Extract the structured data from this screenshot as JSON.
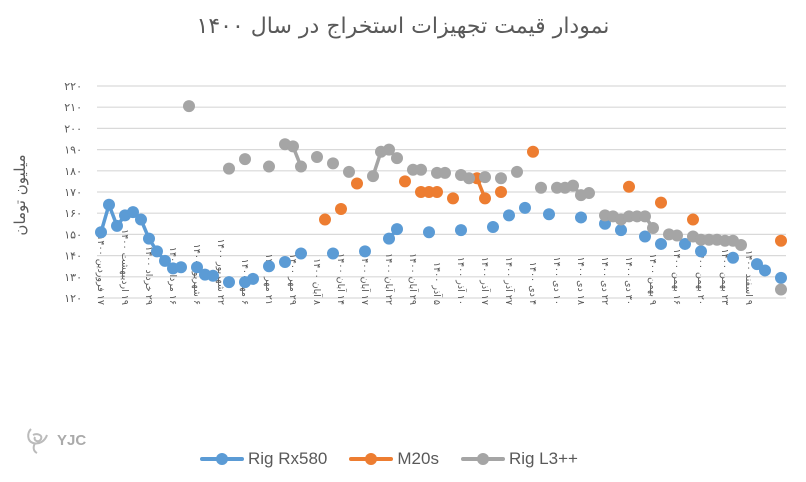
{
  "chart_data": {
    "type": "line",
    "title": "نمودار قیمت تجهیزات استخراج در سال ۱۴۰۰",
    "xlabel": "",
    "ylabel": "میلیون تومان",
    "ylim": [
      120,
      220
    ],
    "yticks": [
      220,
      210,
      200,
      190,
      180,
      170,
      160,
      150,
      140,
      130,
      120
    ],
    "ytick_labels": [
      "۲۲۰",
      "۲۱۰",
      "۲۰۰",
      "۱۹۰",
      "۱۸۰",
      "۱۷۰",
      "۱۶۰",
      "۱۵۰",
      "۱۴۰",
      "۱۳۰",
      "۱۲۰"
    ],
    "grid": true,
    "legend_position": "bottom",
    "n_categories": 86,
    "label_every": 3,
    "categories_labeled": [
      "۱۷ فروردین ۱۴۰۰",
      "۱۹ اردیبهشت ۱۴۰۰",
      "۲۹ خرداد ۱۴۰۰",
      "۱۶ مرداد ۱۴۰۰",
      "۶ شهریور ۱۴۰۰",
      "۲۲ شهریور ۱۴۰۰",
      "۶ مهر ۱۴۰۰",
      "۲۱ مهر ۱۴۰۰",
      "۲۹ مهر ۱۴۰۰",
      "۸ آبان ۱۴۰۰",
      "۱۴ آبان ۱۴۰۰",
      "۱۷ آبان ۱۴۰۰",
      "۲۲ آبان ۱۴۰۰",
      "۲۹ آبان ۱۴۰۰",
      "۵ آذر ۱۴۰۰",
      "۱۰ آذر ۱۴۰۰",
      "۱۷ آذر ۱۴۰۰",
      "۲۷ آذر ۱۴۰۰",
      "۴ دی ۱۴۰۰",
      "۱۰ دی ۱۴۰۰",
      "۱۸ دی ۱۴۰۰",
      "۲۲ دی ۱۴۰۰",
      "۳۰ دی ۱۴۰۰",
      "۹ بهمن ۱۴۰۰",
      "۱۶ بهمن ۱۴۰۰",
      "۲۰ بهمن ۱۴۰۰",
      "۲۳ بهمن ۱۴۰۰",
      "۹ اسفند ۱۴۰۰"
    ],
    "series": [
      {
        "name": "Rig Rx580",
        "color": "#5B9BD5",
        "points": [
          [
            0,
            151
          ],
          [
            1,
            164
          ],
          [
            2,
            154
          ],
          [
            3,
            159
          ],
          [
            4,
            160.5
          ],
          [
            5,
            157
          ],
          [
            6,
            148
          ],
          [
            7,
            142
          ],
          [
            8,
            137.5
          ],
          [
            9,
            134
          ],
          [
            10,
            134.5
          ],
          [
            12,
            134.5
          ],
          [
            13,
            131
          ],
          [
            14,
            130.5
          ],
          [
            16,
            127.5
          ],
          [
            18,
            127.5
          ],
          [
            19,
            129
          ],
          [
            21,
            135
          ],
          [
            23,
            137
          ],
          [
            25,
            141
          ],
          [
            29,
            141
          ],
          [
            33,
            142
          ],
          [
            36,
            148
          ],
          [
            37,
            152.5
          ],
          [
            41,
            151
          ],
          [
            45,
            152
          ],
          [
            49,
            153.5
          ],
          [
            51,
            159
          ],
          [
            53,
            162.5
          ],
          [
            56,
            159.5
          ],
          [
            60,
            158
          ],
          [
            63,
            155
          ],
          [
            65,
            152
          ],
          [
            68,
            149
          ],
          [
            70,
            145.5
          ],
          [
            73,
            145.5
          ],
          [
            75,
            142
          ],
          [
            79,
            139
          ],
          [
            82,
            136
          ],
          [
            83,
            133
          ],
          [
            85,
            129.5
          ]
        ]
      },
      {
        "name": "M20s",
        "color": "#ED7D31",
        "points": [
          [
            28,
            157
          ],
          [
            30,
            162
          ],
          [
            32,
            174
          ],
          [
            38,
            175
          ],
          [
            40,
            170
          ],
          [
            41,
            170
          ],
          [
            42,
            170
          ],
          [
            44,
            167
          ],
          [
            47,
            176.5
          ],
          [
            48,
            167
          ],
          [
            50,
            170
          ],
          [
            54,
            189
          ],
          [
            66,
            172.5
          ],
          [
            70,
            165
          ],
          [
            74,
            157
          ],
          [
            85,
            147
          ]
        ]
      },
      {
        "name": "Rig L3++",
        "color": "#A5A5A5",
        "points": [
          [
            11,
            210.5
          ],
          [
            16,
            181
          ],
          [
            18,
            185.5
          ],
          [
            21,
            182
          ],
          [
            23,
            192.5
          ],
          [
            24,
            191.5
          ],
          [
            25,
            182
          ],
          [
            27,
            186.5
          ],
          [
            29,
            183.5
          ],
          [
            31,
            179.5
          ],
          [
            34,
            177.5
          ],
          [
            35,
            189
          ],
          [
            36,
            190
          ],
          [
            37,
            186
          ],
          [
            39,
            180.5
          ],
          [
            40,
            180.5
          ],
          [
            42,
            179
          ],
          [
            43,
            179
          ],
          [
            45,
            178
          ],
          [
            46,
            176.5
          ],
          [
            48,
            177
          ],
          [
            50,
            176.5
          ],
          [
            52,
            179.5
          ],
          [
            55,
            172
          ],
          [
            57,
            172
          ],
          [
            58,
            172
          ],
          [
            59,
            173
          ],
          [
            60,
            168.5
          ],
          [
            61,
            169.5
          ],
          [
            63,
            159
          ],
          [
            64,
            158.5
          ],
          [
            65,
            157
          ],
          [
            66,
            158.5
          ],
          [
            67,
            158.5
          ],
          [
            68,
            158.5
          ],
          [
            69,
            153
          ],
          [
            71,
            150
          ],
          [
            72,
            149.5
          ],
          [
            74,
            149
          ],
          [
            75,
            147.5
          ],
          [
            76,
            147.5
          ],
          [
            77,
            147.5
          ],
          [
            78,
            147
          ],
          [
            79,
            147
          ],
          [
            80,
            145
          ],
          [
            85,
            124
          ]
        ]
      }
    ]
  },
  "legend": [
    {
      "label": "Rig Rx580",
      "color": "#5B9BD5"
    },
    {
      "label": "M20s",
      "color": "#ED7D31"
    },
    {
      "label": "Rig L3++",
      "color": "#A5A5A5"
    }
  ],
  "logo": {
    "text": "YJC"
  }
}
